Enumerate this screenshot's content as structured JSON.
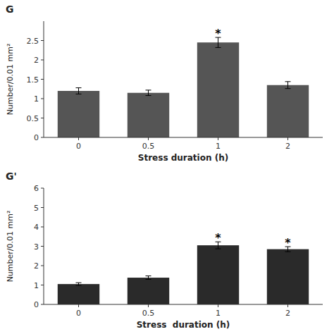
{
  "chart_data": [
    {
      "type": "bar",
      "title": "G",
      "categories": [
        "0",
        "0.5",
        "1",
        "2"
      ],
      "values": [
        1.2,
        1.15,
        2.45,
        1.35
      ],
      "errors": [
        0.08,
        0.07,
        0.13,
        0.09
      ],
      "color": "#555555",
      "xlabel": "Stress duration (h)",
      "ylabel": "Number/0.01 mm²",
      "ylim": [
        0,
        3
      ],
      "yticks": [
        0,
        0.5,
        1,
        1.5,
        2,
        2.5
      ],
      "grid": false,
      "annotations": [
        {
          "text": "*",
          "category": "1"
        }
      ]
    },
    {
      "type": "bar",
      "title": "G'",
      "categories": [
        "0",
        "0.5",
        "1",
        "2"
      ],
      "values": [
        1.05,
        1.38,
        3.05,
        2.85
      ],
      "errors": [
        0.07,
        0.09,
        0.18,
        0.13
      ],
      "color": "#2a2a2a",
      "xlabel": "Stress  duration (h)",
      "ylabel": "Number/0.01 mm²",
      "ylim": [
        0,
        6
      ],
      "yticks": [
        0,
        1,
        2,
        3,
        4,
        5,
        6
      ],
      "grid": false,
      "annotations": [
        {
          "text": "*",
          "category": "1"
        },
        {
          "text": "*",
          "category": "2"
        }
      ]
    }
  ]
}
